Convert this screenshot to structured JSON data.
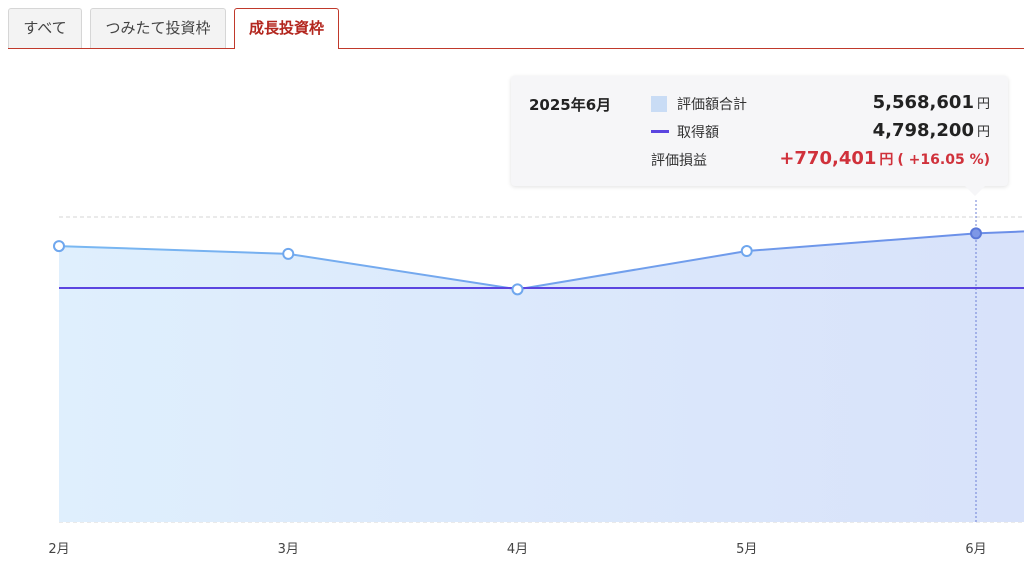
{
  "tabs": [
    {
      "label": "すべて",
      "active": false
    },
    {
      "label": "つみたて投資枠",
      "active": false
    },
    {
      "label": "成長投資枠",
      "active": true
    }
  ],
  "colors": {
    "accent": "#c0392b",
    "valuation_line": "#6fa7ee",
    "valuation_fill": "#dbe6fb",
    "cost_line": "#5b45e0",
    "gain": "#d0313b"
  },
  "tooltip": {
    "date": "2025年6月",
    "valuation": {
      "label": "評価額合計",
      "value": "5,568,601",
      "unit": "円"
    },
    "cost": {
      "label": "取得額",
      "value": "4,798,200",
      "unit": "円"
    },
    "gain": {
      "label": "評価損益",
      "value": "+770,401",
      "unit": "円",
      "pct": "( +16.05 %)"
    }
  },
  "chart_data": {
    "type": "area",
    "categories": [
      "2月",
      "3月",
      "4月",
      "5月",
      "6月"
    ],
    "series": [
      {
        "key": "valuation",
        "values": [
          5390000,
          5280000,
          4780000,
          5320000,
          5568601
        ]
      },
      {
        "key": "cost",
        "values": [
          4798200,
          4798200,
          4798200,
          4798200,
          4798200
        ]
      }
    ],
    "selected_index": 4,
    "grid": true
  }
}
